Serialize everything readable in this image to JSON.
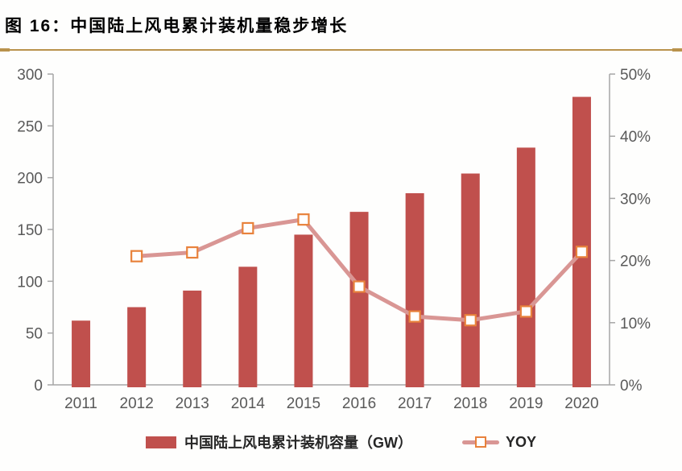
{
  "header": {
    "title": "图 16：中国陆上风电累计装机量稳步增长"
  },
  "colors": {
    "bar": "#C0504D",
    "line": "#D99694",
    "marker_fill": "#FFFFFF",
    "marker_border": "#E8823C",
    "axis_line": "#A6A6A6",
    "axis_text": "#595959",
    "gold_rule": "#B9924C",
    "legend_text": "#262626",
    "title_text": "#000000"
  },
  "chart_data": {
    "type": "bar+line combo",
    "title": "图 16：中国陆上风电累计装机量稳步增长",
    "categories": [
      "2011",
      "2012",
      "2013",
      "2014",
      "2015",
      "2016",
      "2017",
      "2018",
      "2019",
      "2020"
    ],
    "series": [
      {
        "name": "中国陆上风电累计装机容量（GW）",
        "type": "bar",
        "axis": "left",
        "color": "#C0504D",
        "values": [
          62,
          75,
          91,
          114,
          145,
          167,
          185,
          204,
          229,
          278
        ]
      },
      {
        "name": "YOY",
        "type": "line",
        "axis": "right",
        "color": "#D99694",
        "marker": "open-square",
        "marker_border": "#E8823C",
        "values": [
          null,
          20.7,
          21.3,
          25.2,
          26.6,
          15.8,
          11.0,
          10.4,
          11.8,
          21.4
        ]
      }
    ],
    "left_axis": {
      "min": 0,
      "max": 300,
      "tick_labels": [
        "0",
        "50",
        "100",
        "150",
        "200",
        "250",
        "300"
      ]
    },
    "right_axis": {
      "min": 0,
      "max": 50,
      "tick_labels": [
        "0%",
        "10%",
        "20%",
        "30%",
        "40%",
        "50%"
      ]
    },
    "grid": false,
    "legend_position": "bottom"
  },
  "legend": {
    "capacity_label": "中国陆上风电累计装机容量（GW）",
    "yoy_label": "YOY"
  }
}
